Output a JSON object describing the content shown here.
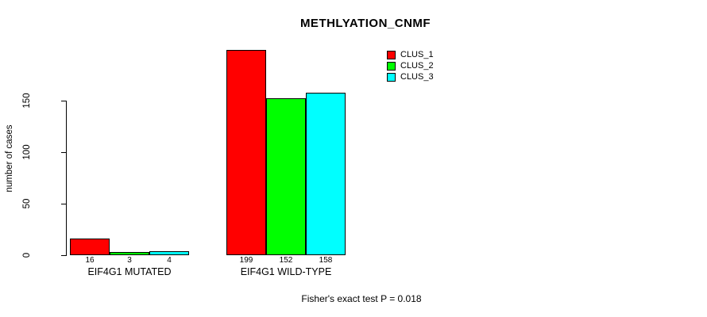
{
  "chart_data": {
    "type": "bar",
    "title": "METHLYATION_CNMF",
    "xlabel": "",
    "ylabel": "number of cases",
    "categories": [
      "EIF4G1 MUTATED",
      "EIF4G1 WILD-TYPE"
    ],
    "series": [
      {
        "name": "CLUS_1",
        "color": "#ff0000",
        "values": [
          16,
          199
        ]
      },
      {
        "name": "CLUS_2",
        "color": "#00ff00",
        "values": [
          3,
          152
        ]
      },
      {
        "name": "CLUS_3",
        "color": "#00ffff",
        "values": [
          4,
          158
        ]
      }
    ],
    "yticks": [
      0,
      50,
      100,
      150
    ],
    "ylim": [
      0,
      205
    ],
    "grid": false,
    "bar_value_labels_shown": true,
    "legend_position": "top-right",
    "annotation": "Fisher's exact test P = 0.018"
  }
}
